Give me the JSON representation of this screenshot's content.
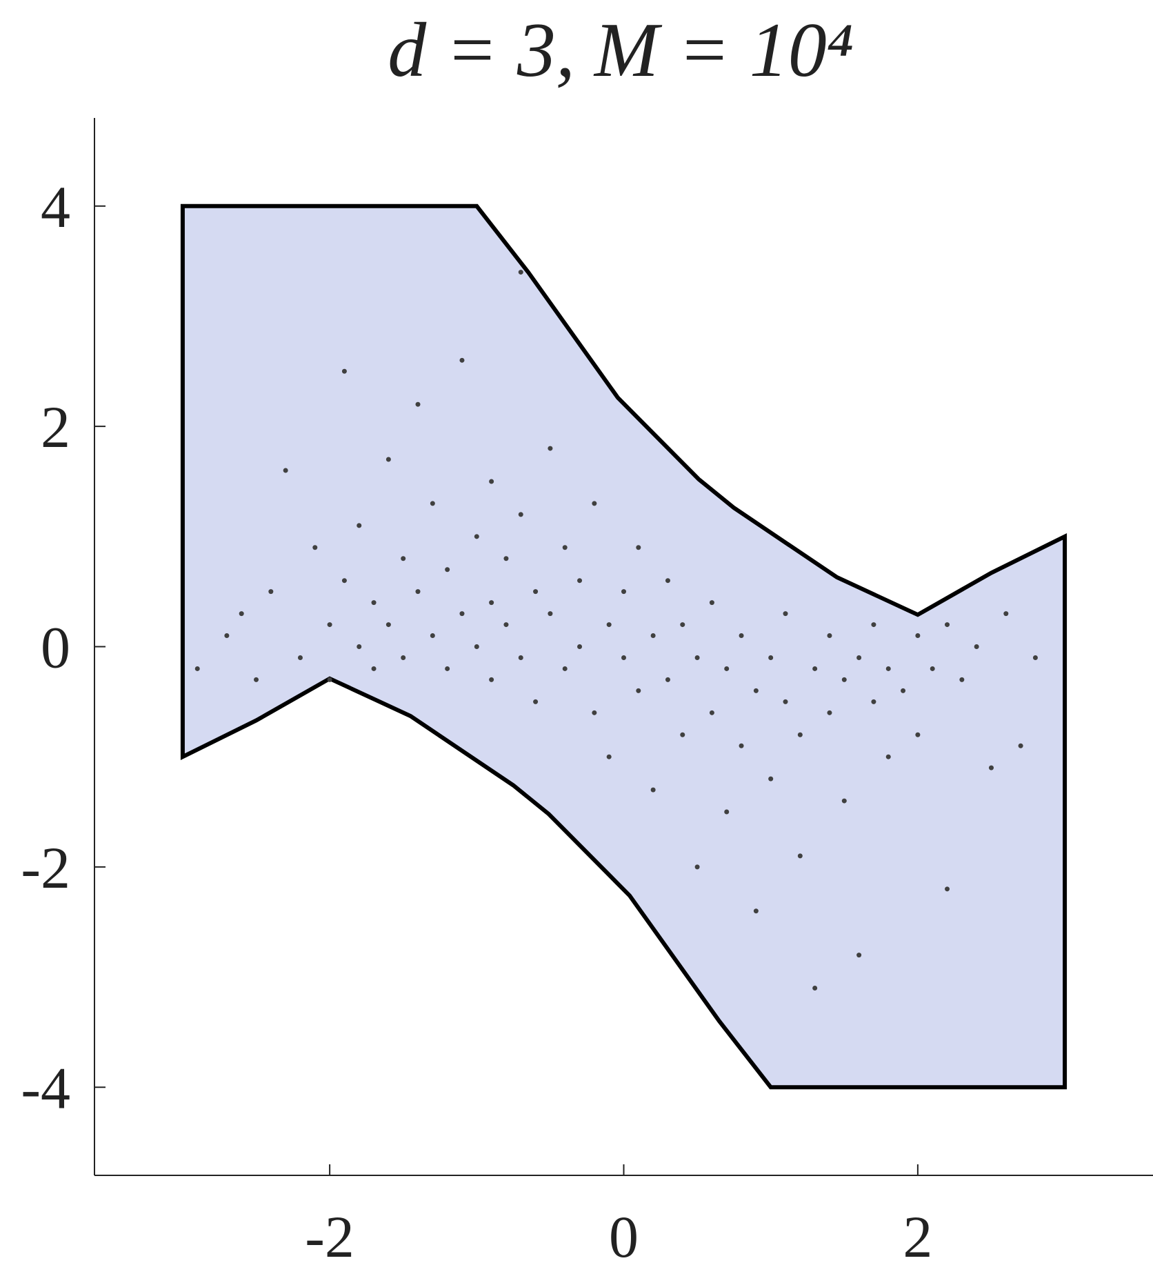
{
  "chart_data": {
    "type": "scatter",
    "title": "d = 3, M = 10⁴",
    "xlim": [
      -3.6,
      3.6
    ],
    "ylim": [
      -4.8,
      4.8
    ],
    "xticks": [
      -2,
      0,
      2
    ],
    "yticks": [
      -4,
      -2,
      0,
      2,
      4
    ],
    "region": {
      "color": "#d5daf2",
      "edge_color": "#000000",
      "x": [
        -3,
        -1,
        -0.65,
        -0.04,
        0.51,
        0.75,
        1.45,
        2,
        2.5,
        3,
        3,
        1,
        0.65,
        0.04,
        -0.51,
        -0.75,
        -1.45,
        -2,
        -2.5,
        -3
      ],
      "y": [
        4,
        4,
        3.4,
        2.26,
        1.52,
        1.26,
        0.63,
        0.29,
        0.67,
        1,
        -4,
        -4,
        -3.4,
        -2.26,
        -1.52,
        -1.26,
        -0.63,
        -0.29,
        -0.67,
        -1
      ]
    },
    "series": [
      {
        "color": "#404040",
        "x": [
          -2.9,
          -2.7,
          -2.6,
          -2.5,
          -2.4,
          -2.3,
          -2.2,
          -2.1,
          -2.0,
          -2.0,
          -1.9,
          -1.9,
          -1.8,
          -1.8,
          -1.7,
          -1.7,
          -1.6,
          -1.6,
          -1.5,
          -1.5,
          -1.4,
          -1.4,
          -1.3,
          -1.3,
          -1.2,
          -1.2,
          -1.1,
          -1.1,
          -1.0,
          -1.0,
          -0.9,
          -0.9,
          -0.9,
          -0.8,
          -0.8,
          -0.7,
          -0.7,
          -0.7,
          -0.6,
          -0.6,
          -0.5,
          -0.5,
          -0.4,
          -0.4,
          -0.3,
          -0.3,
          -0.2,
          -0.2,
          -0.1,
          -0.1,
          0.0,
          0.0,
          0.1,
          0.1,
          0.2,
          0.2,
          0.3,
          0.3,
          0.4,
          0.4,
          0.5,
          0.5,
          0.6,
          0.6,
          0.7,
          0.7,
          0.8,
          0.8,
          0.9,
          0.9,
          1.0,
          1.0,
          1.1,
          1.1,
          1.2,
          1.2,
          1.3,
          1.3,
          1.4,
          1.4,
          1.5,
          1.5,
          1.6,
          1.6,
          1.7,
          1.7,
          1.8,
          1.8,
          1.9,
          2.0,
          2.0,
          2.1,
          2.2,
          2.2,
          2.3,
          2.4,
          2.5,
          2.6,
          2.7,
          2.8
        ],
        "values": [
          -0.2,
          0.1,
          0.3,
          -0.3,
          0.5,
          1.6,
          -0.1,
          0.9,
          0.2,
          -0.3,
          2.5,
          0.6,
          0.0,
          1.1,
          0.4,
          -0.2,
          1.7,
          0.2,
          0.8,
          -0.1,
          2.2,
          0.5,
          1.3,
          0.1,
          0.7,
          -0.2,
          2.6,
          0.3,
          1.0,
          0.0,
          1.5,
          0.4,
          -0.3,
          0.8,
          0.2,
          3.4,
          1.2,
          -0.1,
          0.5,
          -0.5,
          1.8,
          0.3,
          0.9,
          -0.2,
          0.6,
          0.0,
          1.3,
          -0.6,
          0.2,
          -1.0,
          0.5,
          -0.1,
          0.9,
          -0.4,
          0.1,
          -1.3,
          0.6,
          -0.3,
          -0.8,
          0.2,
          -0.1,
          -2.0,
          0.4,
          -0.6,
          -0.2,
          -1.5,
          0.1,
          -0.9,
          -0.4,
          -2.4,
          -0.1,
          -1.2,
          -0.5,
          0.3,
          -0.8,
          -1.9,
          -0.2,
          -3.1,
          -0.6,
          0.1,
          -0.3,
          -1.4,
          -2.8,
          -0.1,
          -0.5,
          0.2,
          -0.2,
          -1.0,
          -0.4,
          0.1,
          -0.8,
          -0.2,
          0.2,
          -2.2,
          -0.3,
          0.0,
          -1.1,
          0.3,
          -0.9,
          -0.1
        ]
      }
    ]
  }
}
